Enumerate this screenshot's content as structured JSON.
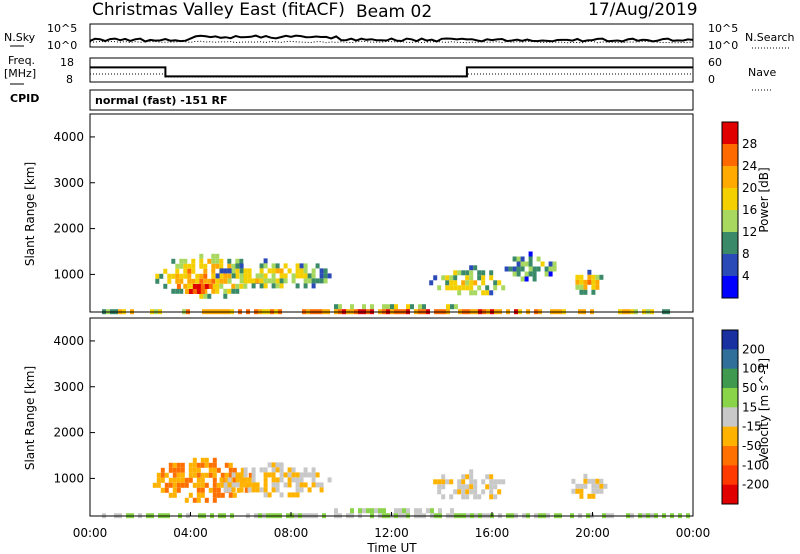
{
  "header": {
    "station": "Christmas Valley East (fitACF)",
    "beam": "Beam 02",
    "date": "17/Aug/2019"
  },
  "side_labels": {
    "nsky": "N.Sky",
    "nsearch": "N.Search",
    "freq_line1": "Freq.",
    "freq_line2": "[MHz]",
    "nave": "Nave",
    "cpid": "CPID"
  },
  "small_ticks": {
    "noise_left_top": "10^5",
    "noise_left_bottom": "10^0",
    "noise_right_top": "10^5",
    "noise_right_bottom": "10^0",
    "freq_left_top": "18",
    "freq_left_bottom": "8",
    "nave_right_top": "60",
    "nave_right_bottom": "0"
  },
  "cpid_text": "normal (fast) -151 RF",
  "axes": {
    "ylabel": "Slant Range [km]",
    "xlabel": "Time UT",
    "yticks": [
      "1000",
      "2000",
      "3000",
      "4000"
    ],
    "xticks": [
      "00:00",
      "04:00",
      "08:00",
      "12:00",
      "16:00",
      "20:00",
      "00:00"
    ]
  },
  "chart_data": [
    {
      "type": "heatmap",
      "name": "power",
      "x": "Time UT",
      "x_range": [
        "00:00",
        "24:00"
      ],
      "y": "Slant Range [km]",
      "ylim": [
        180,
        4500
      ],
      "colorbar_label": "Power [dB]",
      "colorbar_ticks": [
        "28",
        "24",
        "20",
        "16",
        "12",
        "8",
        "4"
      ],
      "colorbar_colors": [
        "#e10000",
        "#ff6a00",
        "#ffaa00",
        "#f5d000",
        "#a8d860",
        "#3a8a6a",
        "#2a4ab8",
        "#0000ff"
      ],
      "echo_regions": [
        {
          "t0": 2.6,
          "t1": 6.6,
          "r0": 550,
          "r1": 1450,
          "level": 20
        },
        {
          "t0": 3.3,
          "t1": 5.0,
          "r0": 600,
          "r1": 900,
          "level": 28
        },
        {
          "t0": 5.0,
          "t1": 9.5,
          "r0": 700,
          "r1": 1350,
          "level": 16
        },
        {
          "t0": 13.5,
          "t1": 16.5,
          "r0": 550,
          "r1": 1200,
          "level": 16
        },
        {
          "t0": 16.5,
          "t1": 18.5,
          "r0": 900,
          "r1": 1500,
          "level": 12
        },
        {
          "t0": 19.0,
          "t1": 20.5,
          "r0": 650,
          "r1": 1100,
          "level": 20
        },
        {
          "t0": 0.0,
          "t1": 24.0,
          "r0": 180,
          "r1": 350,
          "level": 24
        }
      ]
    },
    {
      "type": "heatmap",
      "name": "velocity",
      "x": "Time UT",
      "x_range": [
        "00:00",
        "24:00"
      ],
      "y": "Slant Range [km]",
      "ylim": [
        180,
        4500
      ],
      "colorbar_label": "Velocity [m s^-1]",
      "colorbar_ticks": [
        "200",
        "100",
        "50",
        "15",
        "-15",
        "-50",
        "-100",
        "-200"
      ],
      "colorbar_colors": [
        "#1830a0",
        "#2f6f9a",
        "#3f9a50",
        "#8ad44a",
        "#c8c8c8",
        "#ffb200",
        "#ff7000",
        "#ff3a00",
        "#e10000"
      ],
      "echo_regions": [
        {
          "t0": 2.5,
          "t1": 6.5,
          "r0": 550,
          "r1": 1450,
          "level": -50
        },
        {
          "t0": 5.0,
          "t1": 9.5,
          "r0": 650,
          "r1": 1350,
          "level": -10
        },
        {
          "t0": 13.5,
          "t1": 16.5,
          "r0": 550,
          "r1": 1200,
          "level": -10
        },
        {
          "t0": 19.0,
          "t1": 20.5,
          "r0": 650,
          "r1": 1100,
          "level": -10
        },
        {
          "t0": 0.0,
          "t1": 24.0,
          "r0": 180,
          "r1": 350,
          "level": 15
        }
      ]
    }
  ]
}
